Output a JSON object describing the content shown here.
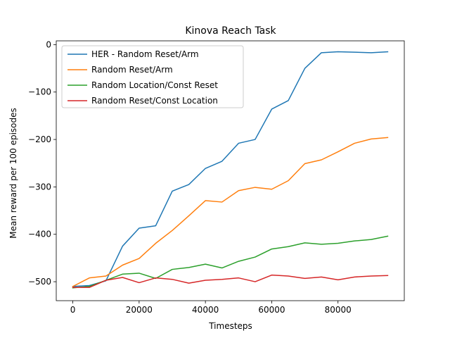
{
  "chart_data": {
    "type": "line",
    "title": "Kinova Reach Task",
    "xlabel": "Timesteps",
    "ylabel": "Mean reward per 100 episodes",
    "xlim": [
      -5000,
      100000
    ],
    "ylim": [
      -540,
      8
    ],
    "xticks": [
      0,
      20000,
      40000,
      60000,
      80000
    ],
    "xtick_labels": [
      "0",
      "20000",
      "40000",
      "60000",
      "80000"
    ],
    "yticks": [
      0,
      -100,
      -200,
      -300,
      -400,
      -500
    ],
    "ytick_labels": [
      "0",
      "−100",
      "−200",
      "−300",
      "−400",
      "−500"
    ],
    "grid": false,
    "legend_position": "top-left",
    "x": [
      0,
      5000,
      10000,
      15000,
      20000,
      25000,
      30000,
      35000,
      40000,
      45000,
      50000,
      55000,
      60000,
      65000,
      70000,
      75000,
      80000,
      85000,
      90000,
      95000
    ],
    "series": [
      {
        "name": "HER - Random Reset/Arm",
        "color": "#1f77b4",
        "values": [
          -510,
          -508,
          -498,
          -425,
          -387,
          -382,
          -309,
          -295,
          -261,
          -246,
          -208,
          -200,
          -136,
          -118,
          -50,
          -17,
          -15,
          -16,
          -17,
          -15
        ]
      },
      {
        "name": "Random Reset/Arm",
        "color": "#ff7f0e",
        "values": [
          -510,
          -492,
          -488,
          -465,
          -451,
          -419,
          -392,
          -361,
          -329,
          -332,
          -308,
          -301,
          -305,
          -287,
          -251,
          -243,
          -226,
          -208,
          -199,
          -196
        ]
      },
      {
        "name": "Random Location/Const Reset",
        "color": "#2ca02c",
        "values": [
          -513,
          -510,
          -497,
          -484,
          -482,
          -493,
          -474,
          -470,
          -463,
          -471,
          -457,
          -448,
          -431,
          -426,
          -418,
          -421,
          -419,
          -414,
          -411,
          -404
        ]
      },
      {
        "name": "Random Reset/Const Location",
        "color": "#d62728",
        "values": [
          -512,
          -512,
          -497,
          -491,
          -502,
          -492,
          -495,
          -503,
          -497,
          -495,
          -492,
          -500,
          -486,
          -488,
          -493,
          -490,
          -496,
          -490,
          -488,
          -487
        ]
      }
    ]
  }
}
